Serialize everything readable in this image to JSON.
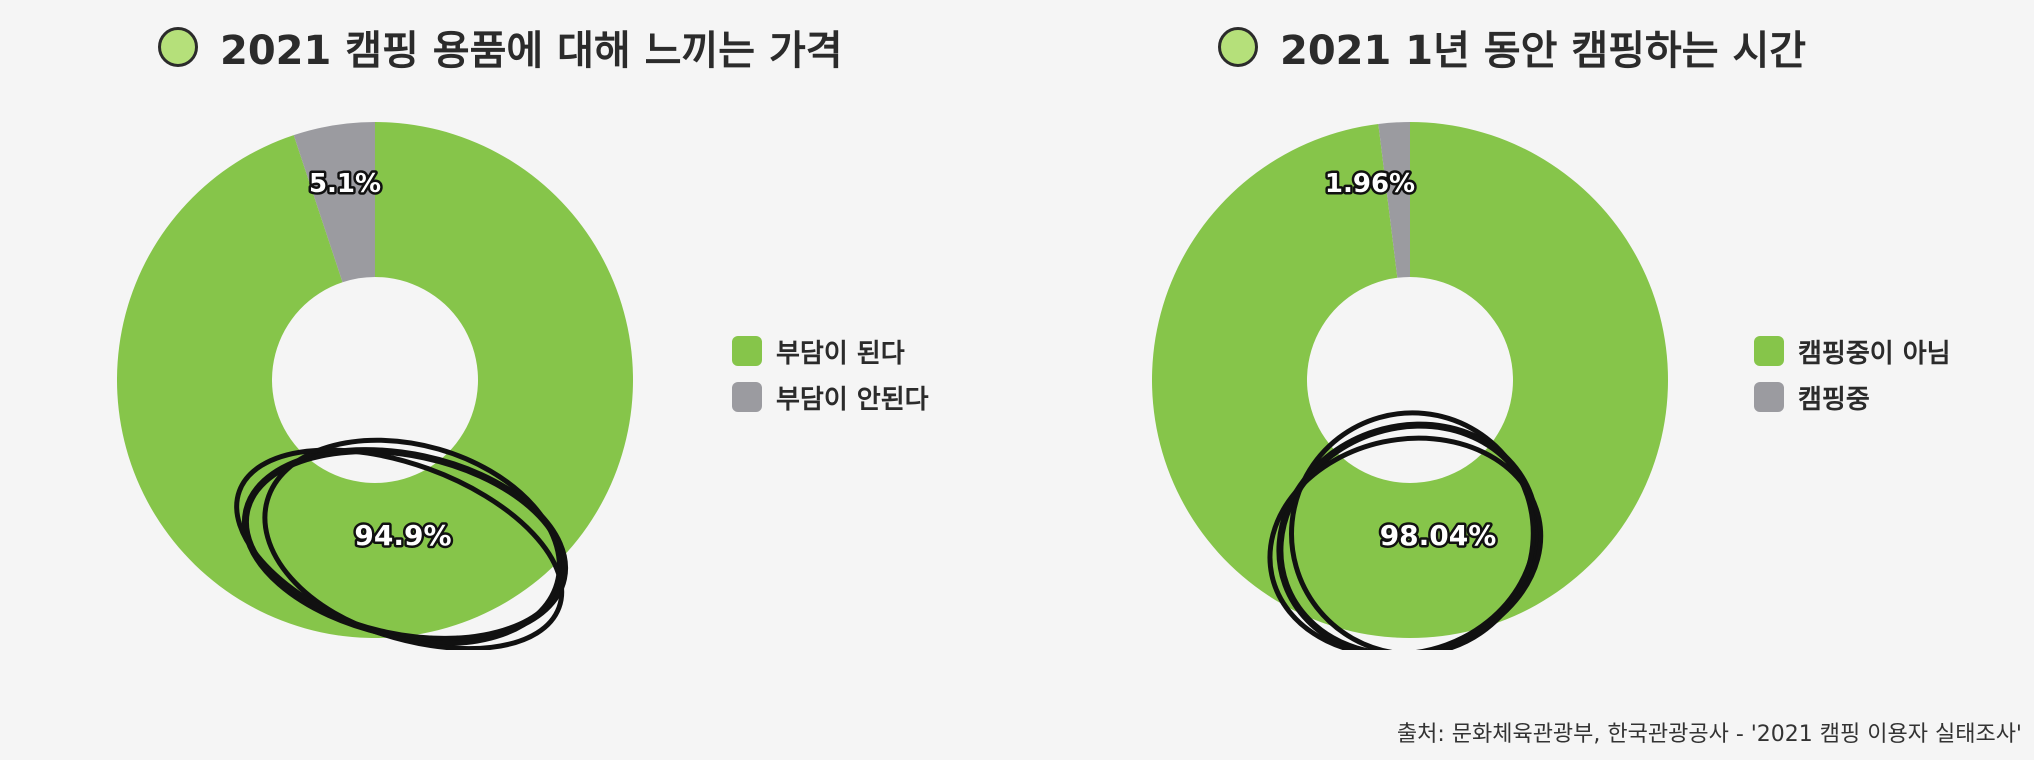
{
  "chart_data": [
    {
      "type": "pie",
      "title": "2021 캠핑 용품에 대해 느끼는 가격",
      "categories": [
        "부담이 된다",
        "부담이 안된다"
      ],
      "values": [
        94.9,
        5.1
      ],
      "labels": [
        "94.9%",
        "5.1%"
      ],
      "colors": [
        "#86c54a",
        "#9b9ba0"
      ],
      "title_dot_color": "#b5e07a",
      "highlight": "94.9%",
      "legend_position": "right"
    },
    {
      "type": "pie",
      "title": "2021 1년 동안 캠핑하는 시간",
      "categories": [
        "캠핑중이 아님",
        "캠핑중"
      ],
      "values": [
        98.04,
        1.96
      ],
      "labels": [
        "98.04%",
        "1.96%"
      ],
      "colors": [
        "#86c54a",
        "#9b9ba0"
      ],
      "title_dot_color": "#b5e07a",
      "highlight": "98.04%",
      "legend_position": "right"
    }
  ],
  "source": "출처: 문화체육관광부, 한국관광공사 - '2021 캠핑 이용자 실태조사'"
}
